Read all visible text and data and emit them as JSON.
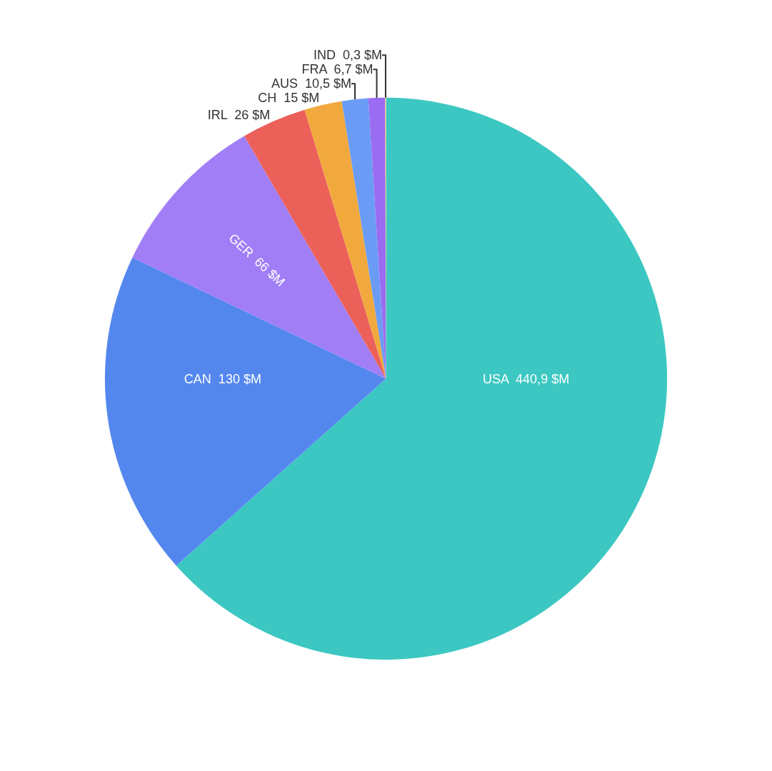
{
  "chart_data": {
    "type": "pie",
    "categories": [
      "USA",
      "CAN",
      "GER",
      "IRL",
      "CH",
      "AUS",
      "FRA",
      "IND"
    ],
    "values": [
      440.9,
      130,
      66,
      26,
      15,
      10.5,
      6.7,
      0.3
    ],
    "value_labels": [
      "440,9 $M",
      "130 $M",
      "66 $M",
      "26 $M",
      "15 $M",
      "10,5 $M",
      "6,7 $M",
      "0,3 $M"
    ],
    "colors": [
      "#3cc7c2",
      "#5487ee",
      "#a17ef5",
      "#ec605a",
      "#f1a93e",
      "#6a9cf5",
      "#9a6cf1",
      "#f7c75d"
    ],
    "legend": false
  }
}
